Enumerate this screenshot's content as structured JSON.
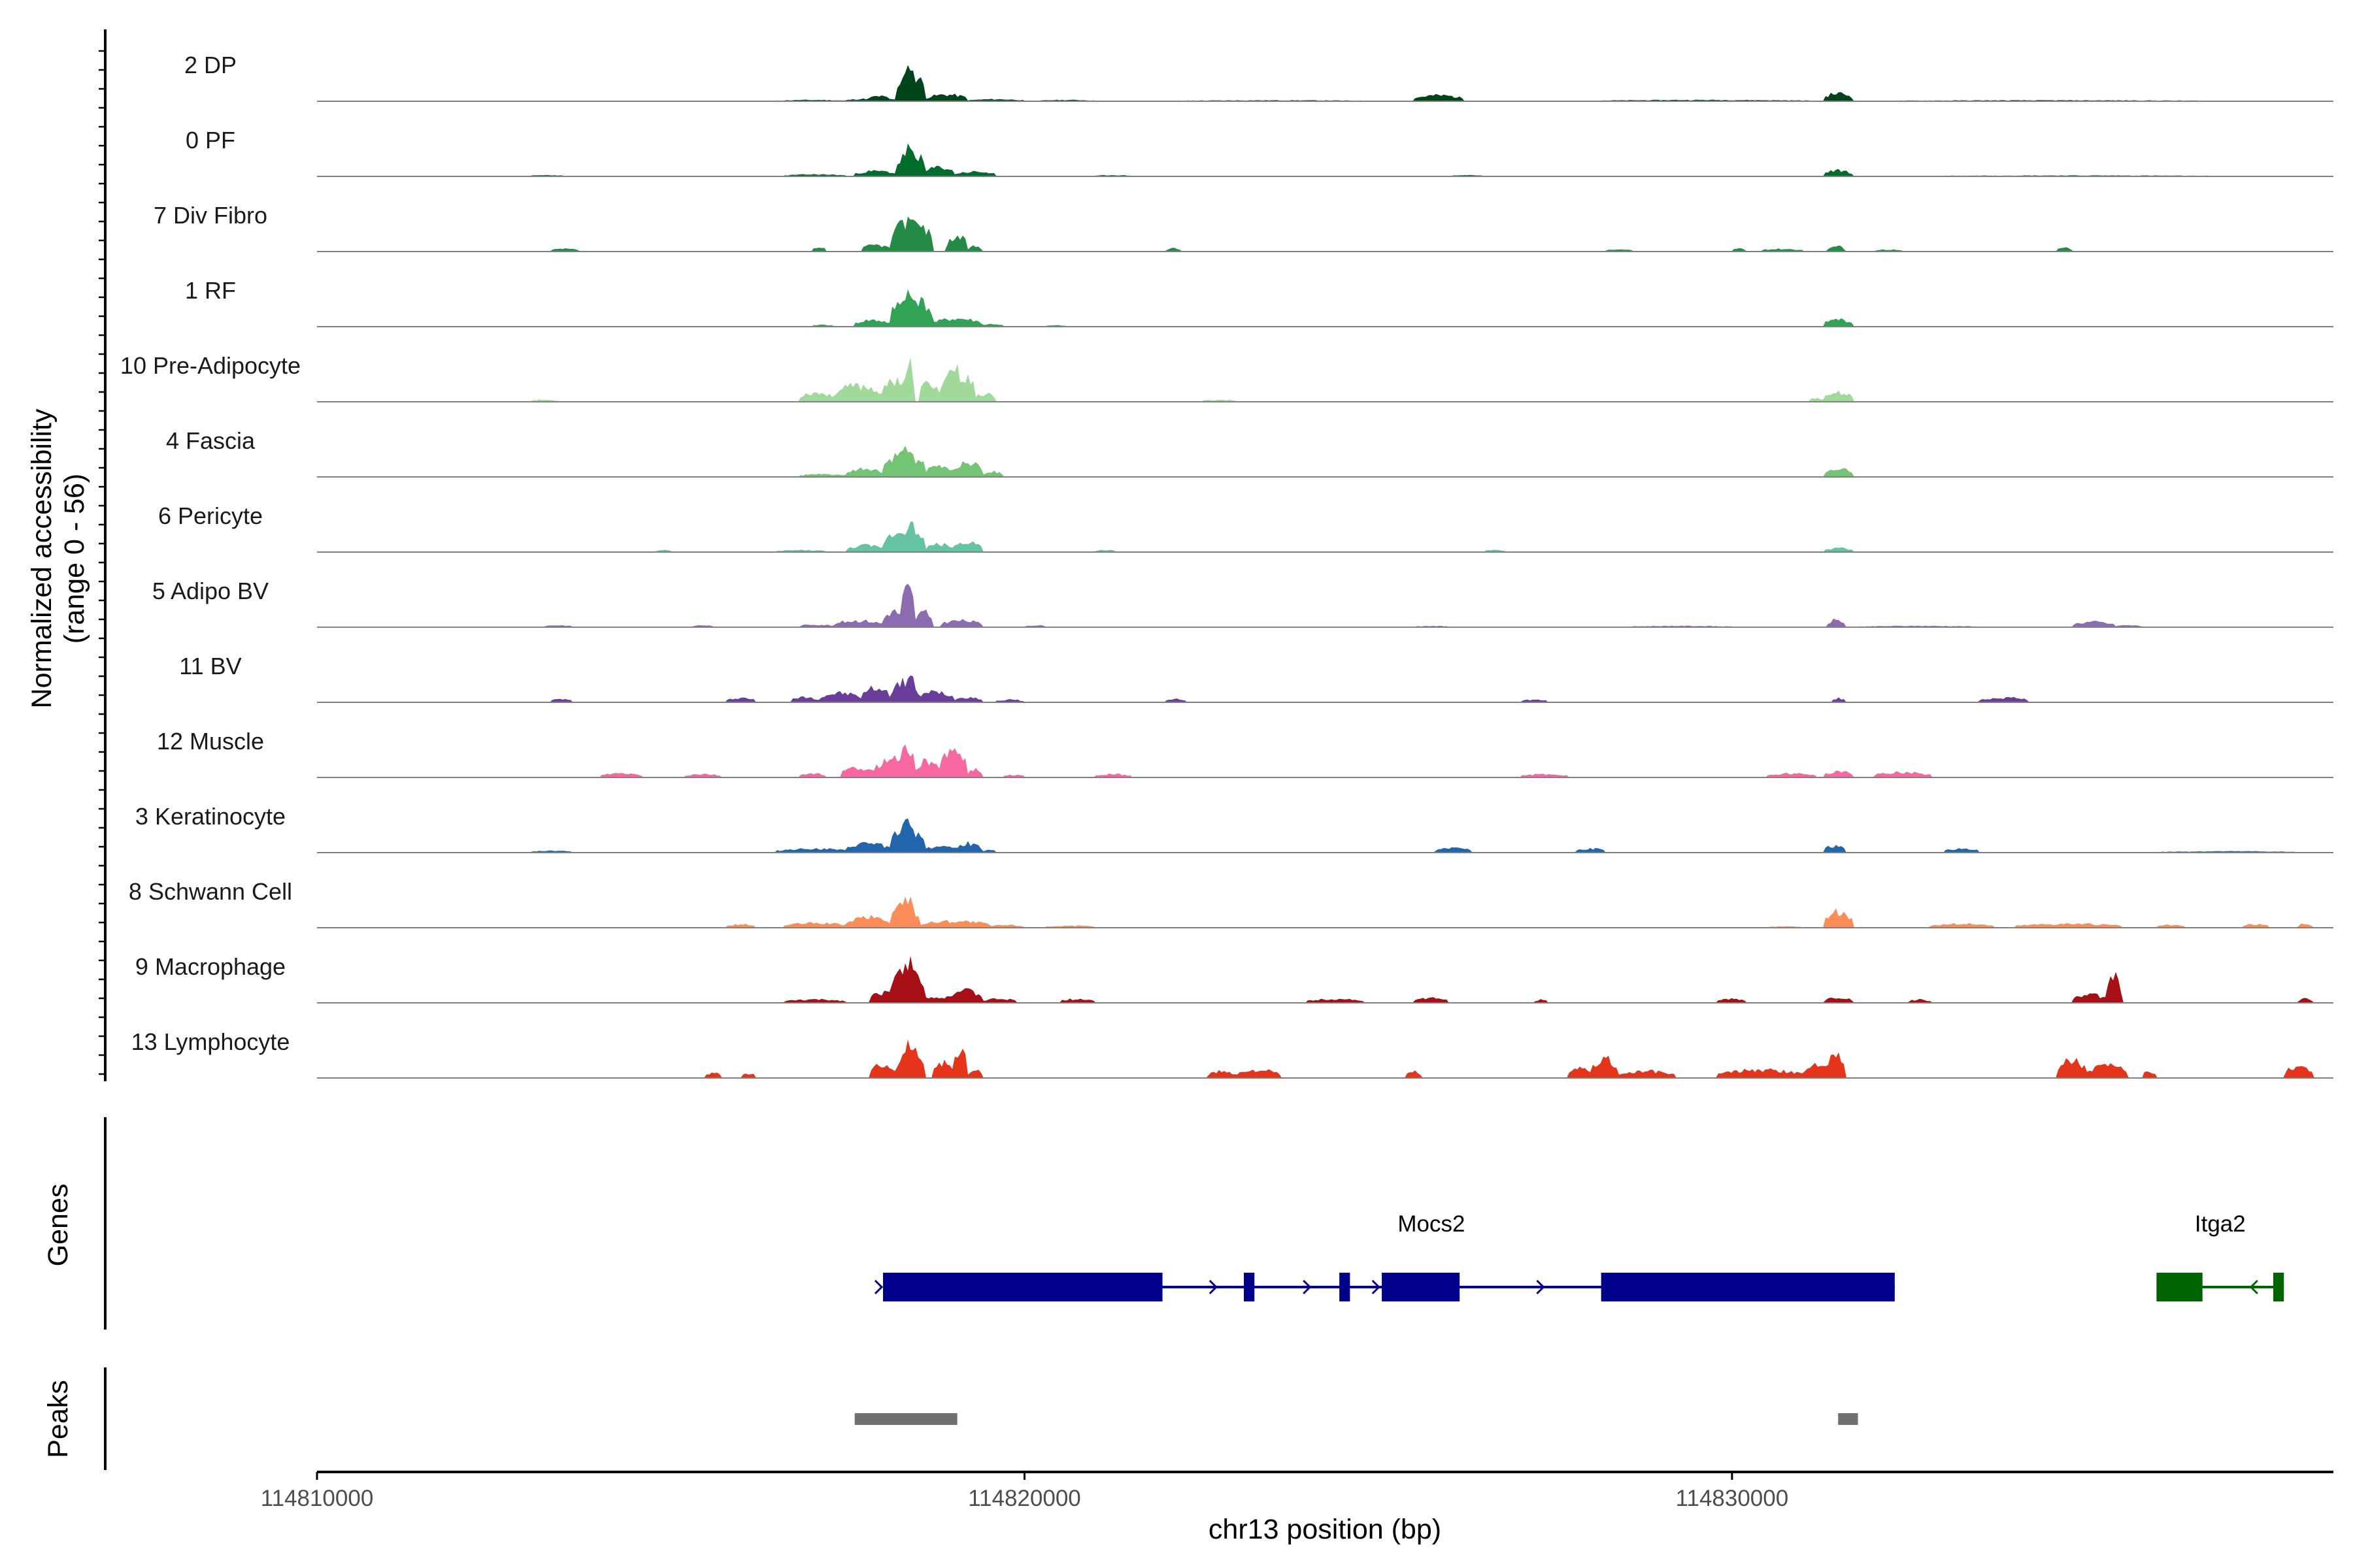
{
  "chart_data": {
    "type": "area",
    "title": "",
    "region": {
      "chrom": "chr13",
      "start": 114810000,
      "end": 114838500
    },
    "xlabel": "chr13 position (bp)",
    "x_ticks": [
      114810000,
      114820000,
      114830000
    ],
    "x_tick_labels": [
      "114810000",
      "114820000",
      "114830000"
    ],
    "ylabel_line1": "Normalized accessibility",
    "ylabel_line2": "(range 0 - 56)",
    "ylim": [
      0,
      56
    ],
    "genes_label": "Genes",
    "peaks_label": "Peaks",
    "series": [
      {
        "name": "2 DP",
        "color": "#00441b",
        "seed": 11,
        "peaks": [
          [
            114817500,
            114818300,
            4
          ],
          [
            114817800,
            114818100,
            8
          ],
          [
            114818200,
            114818600,
            40
          ],
          [
            114818300,
            114818450,
            52
          ],
          [
            114818600,
            114819200,
            10
          ],
          [
            114819200,
            114820000,
            3
          ],
          [
            114816500,
            114817500,
            2
          ],
          [
            114820200,
            114821000,
            2
          ],
          [
            114822000,
            114825000,
            1.5
          ],
          [
            114825500,
            114826200,
            9
          ],
          [
            114828000,
            114831200,
            2
          ],
          [
            114831300,
            114831700,
            12
          ],
          [
            114832000,
            114837000,
            1.5
          ]
        ]
      },
      {
        "name": "0 PF",
        "color": "#006d2c",
        "seed": 23,
        "peaks": [
          [
            114813000,
            114813500,
            2
          ],
          [
            114816600,
            114817500,
            3
          ],
          [
            114817600,
            114818200,
            8
          ],
          [
            114818200,
            114818600,
            35
          ],
          [
            114818300,
            114818450,
            44
          ],
          [
            114818600,
            114819000,
            14
          ],
          [
            114819000,
            114819600,
            7
          ],
          [
            114821000,
            114821500,
            2
          ],
          [
            114826000,
            114826500,
            2
          ],
          [
            114831300,
            114831700,
            9
          ],
          [
            114832500,
            114837000,
            1.5
          ]
        ]
      },
      {
        "name": "7 Div Fibro",
        "color": "#238b45",
        "seed": 37,
        "peaks": [
          [
            114813300,
            114813700,
            4
          ],
          [
            114817000,
            114817200,
            6
          ],
          [
            114817700,
            114818100,
            10
          ],
          [
            114818100,
            114818700,
            44
          ],
          [
            114818300,
            114818500,
            52
          ],
          [
            114818900,
            114819200,
            22
          ],
          [
            114819200,
            114819400,
            8
          ],
          [
            114822000,
            114822200,
            5
          ],
          [
            114828200,
            114828600,
            3
          ],
          [
            114830000,
            114830200,
            5
          ],
          [
            114830400,
            114831000,
            4
          ],
          [
            114831350,
            114831600,
            8
          ],
          [
            114832000,
            114832400,
            3
          ],
          [
            114834600,
            114834800,
            6
          ]
        ]
      },
      {
        "name": "1 RF",
        "color": "#31a354",
        "seed": 41,
        "peaks": [
          [
            114817000,
            114817300,
            3
          ],
          [
            114817600,
            114818100,
            10
          ],
          [
            114818100,
            114818700,
            42
          ],
          [
            114818250,
            114818450,
            50
          ],
          [
            114818700,
            114819400,
            12
          ],
          [
            114819400,
            114819700,
            4
          ],
          [
            114820300,
            114820600,
            2
          ],
          [
            114831300,
            114831700,
            11
          ]
        ]
      },
      {
        "name": "10 Pre-Adipocyte",
        "color": "#a1d99b",
        "seed": 53,
        "peaks": [
          [
            114813000,
            114813400,
            3
          ],
          [
            114816800,
            114817300,
            14
          ],
          [
            114817300,
            114818000,
            24
          ],
          [
            114818000,
            114818400,
            34
          ],
          [
            114818300,
            114818450,
            58
          ],
          [
            114818500,
            114818800,
            28
          ],
          [
            114818800,
            114819300,
            42
          ],
          [
            114818950,
            114819100,
            50
          ],
          [
            114819300,
            114819600,
            12
          ],
          [
            114822500,
            114823000,
            3
          ],
          [
            114831100,
            114831300,
            6
          ],
          [
            114831300,
            114831700,
            14
          ]
        ]
      },
      {
        "name": "4 Fascia",
        "color": "#74c476",
        "seed": 61,
        "peaks": [
          [
            114816800,
            114817500,
            4
          ],
          [
            114817500,
            114818000,
            12
          ],
          [
            114818000,
            114818600,
            32
          ],
          [
            114818250,
            114818450,
            40
          ],
          [
            114818600,
            114819000,
            16
          ],
          [
            114819000,
            114819400,
            22
          ],
          [
            114819400,
            114819700,
            8
          ],
          [
            114831300,
            114831700,
            13
          ]
        ]
      },
      {
        "name": "6 Pericyte",
        "color": "#66c2a4",
        "seed": 73,
        "peaks": [
          [
            114814800,
            114815000,
            3
          ],
          [
            114816500,
            114817200,
            3
          ],
          [
            114817500,
            114818000,
            10
          ],
          [
            114818000,
            114818600,
            32
          ],
          [
            114818300,
            114818500,
            40
          ],
          [
            114818600,
            114819000,
            12
          ],
          [
            114819000,
            114819400,
            16
          ],
          [
            114821000,
            114821300,
            3
          ],
          [
            114826500,
            114826800,
            3
          ],
          [
            114831300,
            114831700,
            6
          ]
        ]
      },
      {
        "name": "5 Adipo BV",
        "color": "#8c6bb1",
        "seed": 83,
        "peaks": [
          [
            114813200,
            114813600,
            3
          ],
          [
            114815300,
            114815600,
            3
          ],
          [
            114816800,
            114817300,
            4
          ],
          [
            114817300,
            114818000,
            10
          ],
          [
            114818000,
            114818300,
            24
          ],
          [
            114818250,
            114818450,
            58
          ],
          [
            114818450,
            114818700,
            22
          ],
          [
            114818800,
            114819400,
            10
          ],
          [
            114820000,
            114820300,
            3
          ],
          [
            114825500,
            114826000,
            2
          ],
          [
            114828500,
            114830000,
            2
          ],
          [
            114831350,
            114831600,
            11
          ],
          [
            114831800,
            114833500,
            2
          ],
          [
            114834800,
            114835400,
            8
          ],
          [
            114835400,
            114835800,
            3
          ]
        ]
      },
      {
        "name": "11 BV",
        "color": "#6a3d9a",
        "seed": 97,
        "peaks": [
          [
            114813300,
            114813600,
            5
          ],
          [
            114815800,
            114816200,
            7
          ],
          [
            114816700,
            114817100,
            8
          ],
          [
            114817100,
            114817700,
            14
          ],
          [
            114817700,
            114818100,
            22
          ],
          [
            114818100,
            114818500,
            30
          ],
          [
            114818300,
            114818450,
            42
          ],
          [
            114818500,
            114819000,
            16
          ],
          [
            114819000,
            114819400,
            8
          ],
          [
            114819600,
            114820000,
            4
          ],
          [
            114822000,
            114822300,
            5
          ],
          [
            114827000,
            114827400,
            4
          ],
          [
            114831400,
            114831600,
            6
          ],
          [
            114833500,
            114834200,
            7
          ]
        ]
      },
      {
        "name": "12 Muscle",
        "color": "#f768a1",
        "seed": 103,
        "peaks": [
          [
            114814000,
            114814600,
            6
          ],
          [
            114815200,
            114815700,
            5
          ],
          [
            114816800,
            114817200,
            6
          ],
          [
            114817400,
            114817900,
            14
          ],
          [
            114817900,
            114818400,
            30
          ],
          [
            114818250,
            114818450,
            48
          ],
          [
            114818450,
            114818800,
            24
          ],
          [
            114818800,
            114819200,
            40
          ],
          [
            114818950,
            114819100,
            52
          ],
          [
            114819200,
            114819400,
            12
          ],
          [
            114819700,
            114820000,
            4
          ],
          [
            114821000,
            114821500,
            5
          ],
          [
            114827000,
            114827700,
            5
          ],
          [
            114830500,
            114831200,
            6
          ],
          [
            114831300,
            114831700,
            9
          ],
          [
            114832000,
            114832800,
            8
          ]
        ]
      },
      {
        "name": "3 Keratinocyte",
        "color": "#2166ac",
        "seed": 113,
        "peaks": [
          [
            114813000,
            114813600,
            3
          ],
          [
            114816500,
            114817500,
            6
          ],
          [
            114817500,
            114818100,
            14
          ],
          [
            114818100,
            114818600,
            36
          ],
          [
            114818250,
            114818450,
            46
          ],
          [
            114818600,
            114819000,
            10
          ],
          [
            114819000,
            114819400,
            14
          ],
          [
            114819400,
            114819600,
            4
          ],
          [
            114825800,
            114826300,
            8
          ],
          [
            114827800,
            114828200,
            6
          ],
          [
            114831300,
            114831600,
            10
          ],
          [
            114833000,
            114833500,
            6
          ],
          [
            114836000,
            114838000,
            2
          ]
        ]
      },
      {
        "name": "8 Schwann Cell",
        "color": "#fc8d59",
        "seed": 127,
        "peaks": [
          [
            114815800,
            114816200,
            5
          ],
          [
            114816600,
            114817500,
            7
          ],
          [
            114817500,
            114818100,
            16
          ],
          [
            114818100,
            114818500,
            34
          ],
          [
            114818250,
            114818450,
            44
          ],
          [
            114818500,
            114819500,
            10
          ],
          [
            114819500,
            114820000,
            4
          ],
          [
            114820300,
            114821000,
            3
          ],
          [
            114830500,
            114831000,
            2
          ],
          [
            114831300,
            114831700,
            24
          ],
          [
            114832800,
            114833700,
            6
          ],
          [
            114834000,
            114835500,
            6
          ],
          [
            114836000,
            114836400,
            4
          ],
          [
            114837200,
            114837600,
            5
          ],
          [
            114838000,
            114838200,
            6
          ]
        ]
      },
      {
        "name": "9 Macrophage",
        "color": "#a50f15",
        "seed": 131,
        "peaks": [
          [
            114816600,
            114817500,
            5
          ],
          [
            114817800,
            114818200,
            16
          ],
          [
            114818100,
            114818600,
            48
          ],
          [
            114818300,
            114818450,
            72
          ],
          [
            114818500,
            114818900,
            10
          ],
          [
            114818900,
            114819400,
            18
          ],
          [
            114819400,
            114819900,
            6
          ],
          [
            114820500,
            114821000,
            6
          ],
          [
            114824000,
            114824800,
            6
          ],
          [
            114825500,
            114826000,
            7
          ],
          [
            114827200,
            114827400,
            5
          ],
          [
            114829800,
            114830200,
            6
          ],
          [
            114831300,
            114831700,
            8
          ],
          [
            114832500,
            114832800,
            5
          ],
          [
            114834800,
            114835300,
            12
          ],
          [
            114835300,
            114835500,
            44
          ],
          [
            114838000,
            114838200,
            6
          ]
        ]
      },
      {
        "name": "13 Lymphocyte",
        "color": "#e6341a",
        "seed": 139,
        "peaks": [
          [
            114815500,
            114815700,
            8
          ],
          [
            114816000,
            114816200,
            7
          ],
          [
            114817800,
            114818200,
            20
          ],
          [
            114818200,
            114818600,
            40
          ],
          [
            114818300,
            114818450,
            52
          ],
          [
            114818700,
            114819000,
            24
          ],
          [
            114819000,
            114819200,
            40
          ],
          [
            114819200,
            114819400,
            12
          ],
          [
            114822600,
            114823000,
            10
          ],
          [
            114823000,
            114823600,
            12
          ],
          [
            114825400,
            114825600,
            10
          ],
          [
            114827700,
            114828000,
            14
          ],
          [
            114828000,
            114828400,
            28
          ],
          [
            114828400,
            114829200,
            10
          ],
          [
            114829800,
            114831000,
            12
          ],
          [
            114831000,
            114831400,
            20
          ],
          [
            114831300,
            114831600,
            34
          ],
          [
            114834600,
            114835000,
            28
          ],
          [
            114835000,
            114835600,
            18
          ],
          [
            114835800,
            114836000,
            10
          ],
          [
            114837800,
            114838200,
            18
          ]
        ]
      }
    ],
    "genes": [
      {
        "name": "Mocs2",
        "color": "#00008b",
        "strand": "+",
        "start": 114818000,
        "end": 114832300,
        "exons": [
          [
            114818000,
            114821950
          ],
          [
            114823100,
            114823250
          ],
          [
            114824450,
            114824600
          ],
          [
            114825050,
            114826150
          ],
          [
            114828150,
            114832300
          ]
        ]
      },
      {
        "name": "Itga2",
        "color": "#006400",
        "strand": "-",
        "start": 114836000,
        "end": 114837800,
        "exons": [
          [
            114836000,
            114836650
          ],
          [
            114837650,
            114837800
          ]
        ]
      }
    ],
    "peaks_track": [
      [
        114817600,
        114819050
      ],
      [
        114831500,
        114831780
      ]
    ]
  }
}
